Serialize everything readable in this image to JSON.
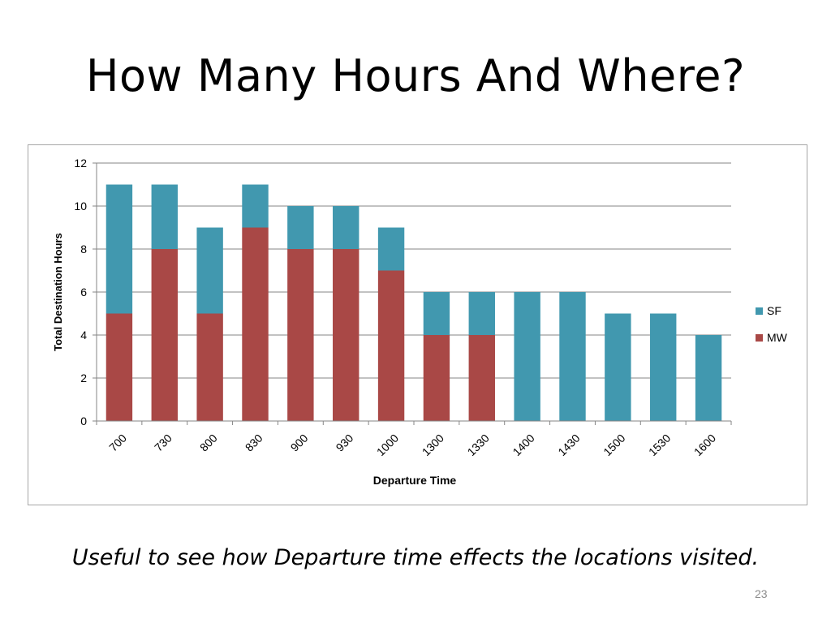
{
  "slide": {
    "title": "How Many Hours And Where?",
    "caption": "Useful to see how Departure time effects the locations visited.",
    "page_number": "23"
  },
  "colors": {
    "SF": "#4198AF",
    "MW": "#A94846",
    "grid": "#868686",
    "text": "#000000"
  },
  "chart_data": {
    "type": "bar",
    "stacked": true,
    "categories": [
      "700",
      "730",
      "800",
      "830",
      "900",
      "930",
      "1000",
      "1300",
      "1330",
      "1400",
      "1430",
      "1500",
      "1530",
      "1600"
    ],
    "series": [
      {
        "name": "MW",
        "values": [
          5,
          8,
          5,
          9,
          8,
          8,
          7,
          4,
          4,
          0,
          0,
          0,
          0,
          0
        ]
      },
      {
        "name": "SF",
        "values": [
          6,
          3,
          4,
          2,
          2,
          2,
          2,
          2,
          2,
          6,
          6,
          5,
          5,
          4
        ]
      }
    ],
    "xlabel": "Departure Time",
    "ylabel": "Total Destination Hours",
    "ylim": [
      0,
      12
    ],
    "yticks": [
      0,
      2,
      4,
      6,
      8,
      10,
      12
    ],
    "grid": true,
    "legend": {
      "position": "right",
      "entries": [
        "SF",
        "MW"
      ]
    }
  }
}
